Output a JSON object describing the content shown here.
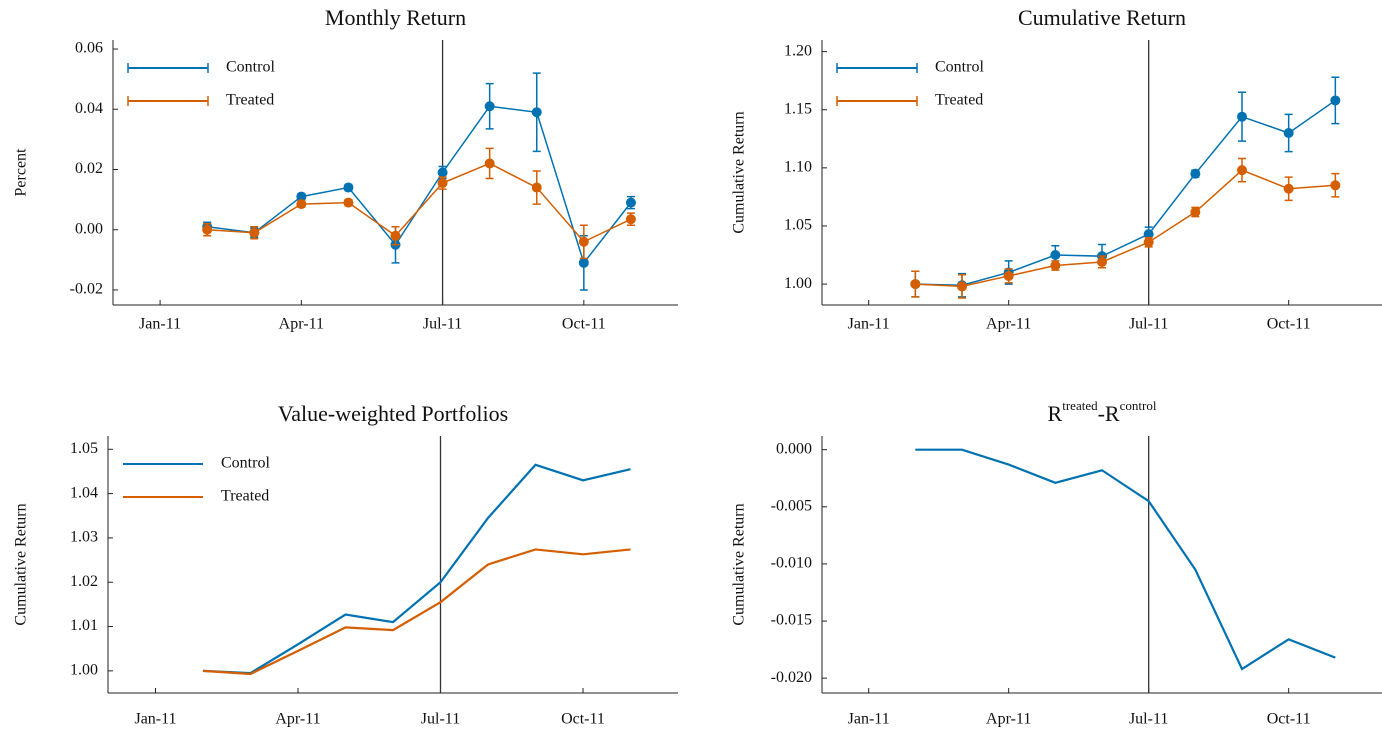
{
  "chart_data": [
    {
      "type": "errorbar",
      "title": "Monthly Return",
      "ylabel": "Percent",
      "x": [
        "2011-02",
        "2011-03",
        "2011-04",
        "2011-05",
        "2011-06",
        "2011-07",
        "2011-08",
        "2011-09",
        "2011-10",
        "2011-11"
      ],
      "xlim": [
        "2010-12",
        "2011-12"
      ],
      "xticks": [
        {
          "value": "2011-01",
          "label": "Jan-11"
        },
        {
          "value": "2011-04",
          "label": "Apr-11"
        },
        {
          "value": "2011-07",
          "label": "Jul-11"
        },
        {
          "value": "2011-10",
          "label": "Oct-11"
        }
      ],
      "ylim": [
        -0.025,
        0.063
      ],
      "yticks": [
        -0.02,
        {
          "value": 0,
          "label": "0.00"
        },
        0.02,
        0.04,
        0.06
      ],
      "vline": "2011-07",
      "legend": "top-left",
      "series": [
        {
          "name": "Control",
          "color": "#0072b2",
          "values": [
            0.001,
            -0.001,
            0.011,
            0.014,
            -0.005,
            0.019,
            0.041,
            0.039,
            -0.011,
            0.009
          ],
          "errors": [
            0.0015,
            0.0015,
            0.001,
            0.001,
            0.006,
            0.002,
            0.0075,
            0.013,
            0.009,
            0.002
          ]
        },
        {
          "name": "Treated",
          "color": "#d55e00",
          "values": [
            0,
            -0.001,
            0.0085,
            0.009,
            -0.002,
            0.0155,
            0.022,
            0.014,
            -0.004,
            0.0035
          ],
          "errors": [
            0.002,
            0.002,
            0.001,
            0.001,
            0.003,
            0.002,
            0.005,
            0.0055,
            0.0055,
            0.002
          ]
        }
      ]
    },
    {
      "type": "errorbar",
      "title": "Cumulative Return",
      "ylabel": "Cumulative Return",
      "x": [
        "2011-02",
        "2011-03",
        "2011-04",
        "2011-05",
        "2011-06",
        "2011-07",
        "2011-08",
        "2011-09",
        "2011-10",
        "2011-11"
      ],
      "xlim": [
        "2010-12",
        "2011-12"
      ],
      "xticks": [
        {
          "value": "2011-01",
          "label": "Jan-11"
        },
        {
          "value": "2011-04",
          "label": "Apr-11"
        },
        {
          "value": "2011-07",
          "label": "Jul-11"
        },
        {
          "value": "2011-10",
          "label": "Oct-11"
        }
      ],
      "ylim": [
        0.982,
        1.21
      ],
      "yticks": [
        {
          "value": 1,
          "label": "1.00"
        },
        1.05,
        {
          "value": 1.1,
          "label": "1.10"
        },
        1.15,
        {
          "value": 1.2,
          "label": "1.20"
        }
      ],
      "vline": "2011-07",
      "legend": "top-left",
      "series": [
        {
          "name": "Control",
          "color": "#0072b2",
          "values": [
            1.0,
            0.999,
            1.01,
            1.025,
            1.024,
            1.043,
            1.095,
            1.144,
            1.13,
            1.158
          ],
          "errors": [
            0.011,
            0.01,
            0.01,
            0.008,
            0.01,
            0.006,
            0.003,
            0.021,
            0.016,
            0.02
          ]
        },
        {
          "name": "Treated",
          "color": "#d55e00",
          "values": [
            1.0,
            0.998,
            1.007,
            1.016,
            1.019,
            1.036,
            1.062,
            1.098,
            1.082,
            1.085
          ],
          "errors": [
            0.011,
            0.01,
            0.006,
            0.004,
            0.005,
            0.004,
            0.004,
            0.01,
            0.01,
            0.01
          ]
        }
      ]
    },
    {
      "type": "line",
      "title": "Value-weighted Portfolios",
      "ylabel": "Cumulative Return",
      "x": [
        "2011-02",
        "2011-03",
        "2011-04",
        "2011-05",
        "2011-06",
        "2011-07",
        "2011-08",
        "2011-09",
        "2011-10",
        "2011-11"
      ],
      "xlim": [
        "2010-12",
        "2011-12"
      ],
      "xticks": [
        {
          "value": "2011-01",
          "label": "Jan-11"
        },
        {
          "value": "2011-04",
          "label": "Apr-11"
        },
        {
          "value": "2011-07",
          "label": "Jul-11"
        },
        {
          "value": "2011-10",
          "label": "Oct-11"
        }
      ],
      "ylim": [
        0.995,
        1.053
      ],
      "yticks": [
        {
          "value": 1,
          "label": "1.00"
        },
        1.01,
        1.02,
        1.03,
        1.04,
        1.05
      ],
      "vline": "2011-07",
      "legend": "top-left",
      "series": [
        {
          "name": "Control",
          "color": "#0072b2",
          "values": [
            1.0,
            0.9995,
            1.006,
            1.0127,
            1.011,
            1.02,
            1.0345,
            1.0465,
            1.043,
            1.0455
          ]
        },
        {
          "name": "Treated",
          "color": "#d55e00",
          "values": [
            1.0,
            0.9993,
            1.0045,
            1.0098,
            1.0092,
            1.0155,
            1.024,
            1.0274,
            1.0263,
            1.0274
          ]
        }
      ]
    },
    {
      "type": "line",
      "title_parts": [
        "R",
        "treated",
        "-R",
        "control"
      ],
      "ylabel": "Cumulative Return",
      "x": [
        "2011-02",
        "2011-03",
        "2011-04",
        "2011-05",
        "2011-06",
        "2011-07",
        "2011-08",
        "2011-09",
        "2011-10",
        "2011-11"
      ],
      "xlim": [
        "2010-12",
        "2011-12"
      ],
      "xticks": [
        {
          "value": "2011-01",
          "label": "Jan-11"
        },
        {
          "value": "2011-04",
          "label": "Apr-11"
        },
        {
          "value": "2011-07",
          "label": "Jul-11"
        },
        {
          "value": "2011-10",
          "label": "Oct-11"
        }
      ],
      "ylim": [
        -0.0213,
        0.0012
      ],
      "yticks": [
        {
          "value": 0,
          "label": "0.000"
        },
        -0.005,
        {
          "value": -0.01,
          "label": "-0.010"
        },
        -0.015,
        {
          "value": -0.02,
          "label": "-0.020"
        }
      ],
      "vline": "2011-07",
      "color": "#0072b2",
      "values": [
        0,
        0,
        -0.0013,
        -0.0029,
        -0.0018,
        -0.0045,
        -0.0105,
        -0.0192,
        -0.0166,
        -0.0182
      ]
    }
  ]
}
